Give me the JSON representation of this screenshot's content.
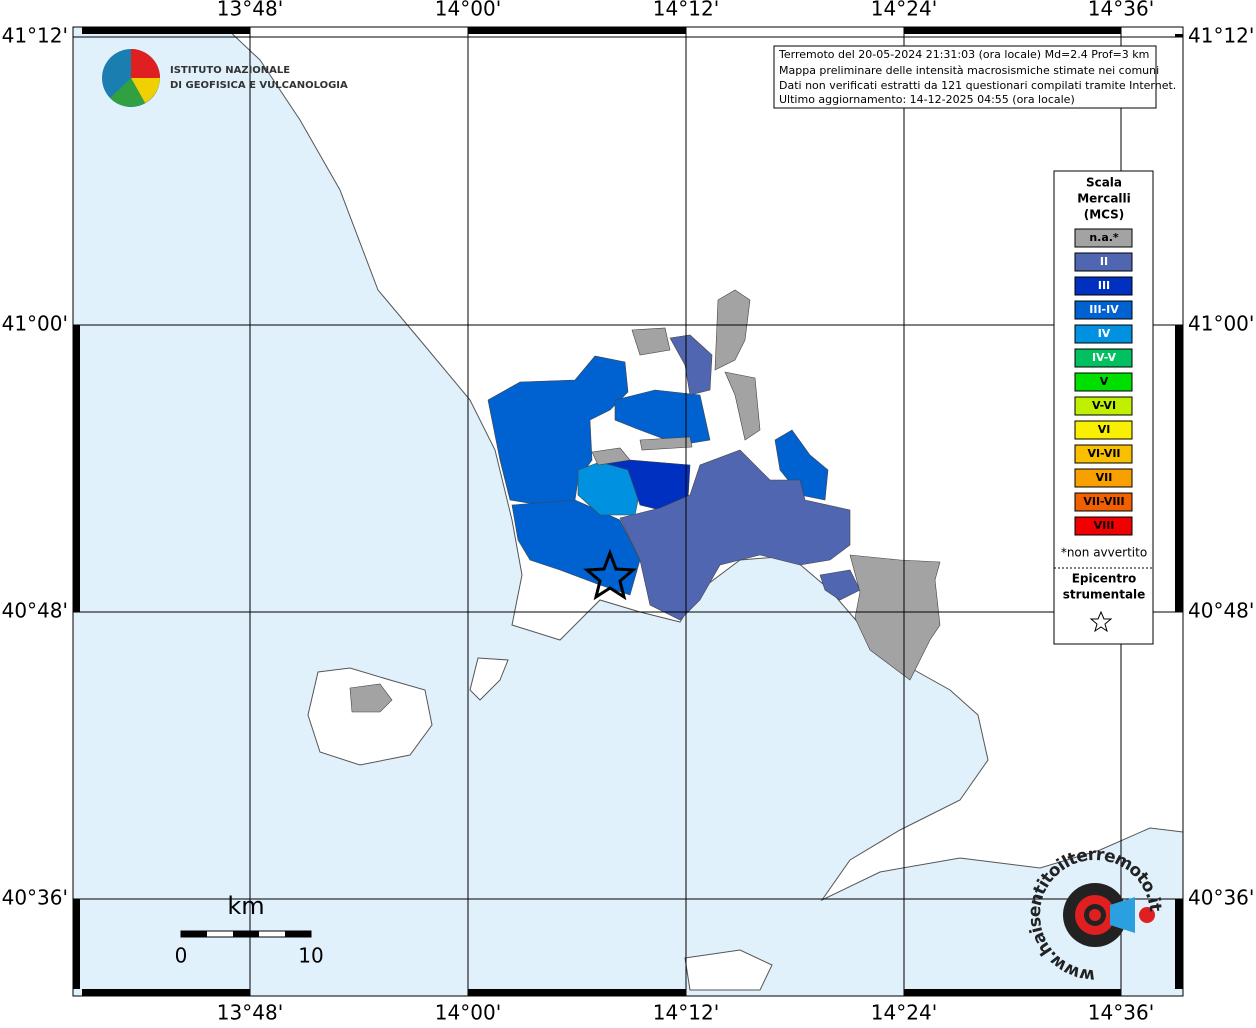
{
  "map": {
    "lon_labels": [
      "13°48'",
      "14°00'",
      "14°12'",
      "14°24'",
      "14°36'"
    ],
    "lat_labels": [
      "41°12'",
      "41°00'",
      "40°48'",
      "40°36'"
    ],
    "logo": [
      "ISTITUTO NAZIONALE",
      "DI GEOFISICA E VULCANOLOGIA"
    ],
    "info": [
      "Terremoto del 20-05-2024 21:31:03 (ora locale) Md=2.4 Prof=3 km",
      "Mappa preliminare delle intensità macrosismiche stimate nei comuni",
      "Dati non verificati estratti da 121 questionari compilati tramite Internet.",
      "Ultimo aggiornamento: 14-12-2025 04:55 (ora locale)"
    ],
    "legend": {
      "title": [
        "Scala",
        "Mercalli",
        "(MCS)"
      ],
      "items": [
        {
          "label": "n.a.*",
          "color": "#a3a3a3"
        },
        {
          "label": "II",
          "color": "#5066b0"
        },
        {
          "label": "III",
          "color": "#0030c0"
        },
        {
          "label": "III-IV",
          "color": "#0062d0"
        },
        {
          "label": "IV",
          "color": "#0092e0"
        },
        {
          "label": "IV-V",
          "color": "#00c060"
        },
        {
          "label": "V",
          "color": "#00e000"
        },
        {
          "label": "V-VI",
          "color": "#c0f000"
        },
        {
          "label": "VI",
          "color": "#f8f000"
        },
        {
          "label": "VI-VII",
          "color": "#f8c000"
        },
        {
          "label": "VII",
          "color": "#f8a000"
        },
        {
          "label": "VII-VIII",
          "color": "#f06000"
        },
        {
          "label": "VIII",
          "color": "#f00000"
        }
      ],
      "footnote": "*non avvertito",
      "epicenter_title": [
        "Epicentro",
        "strumentale"
      ]
    },
    "scale": {
      "unit": "km",
      "labels": [
        "0",
        "10"
      ]
    },
    "watermark": "www.haisentitoilterremoto.it"
  }
}
